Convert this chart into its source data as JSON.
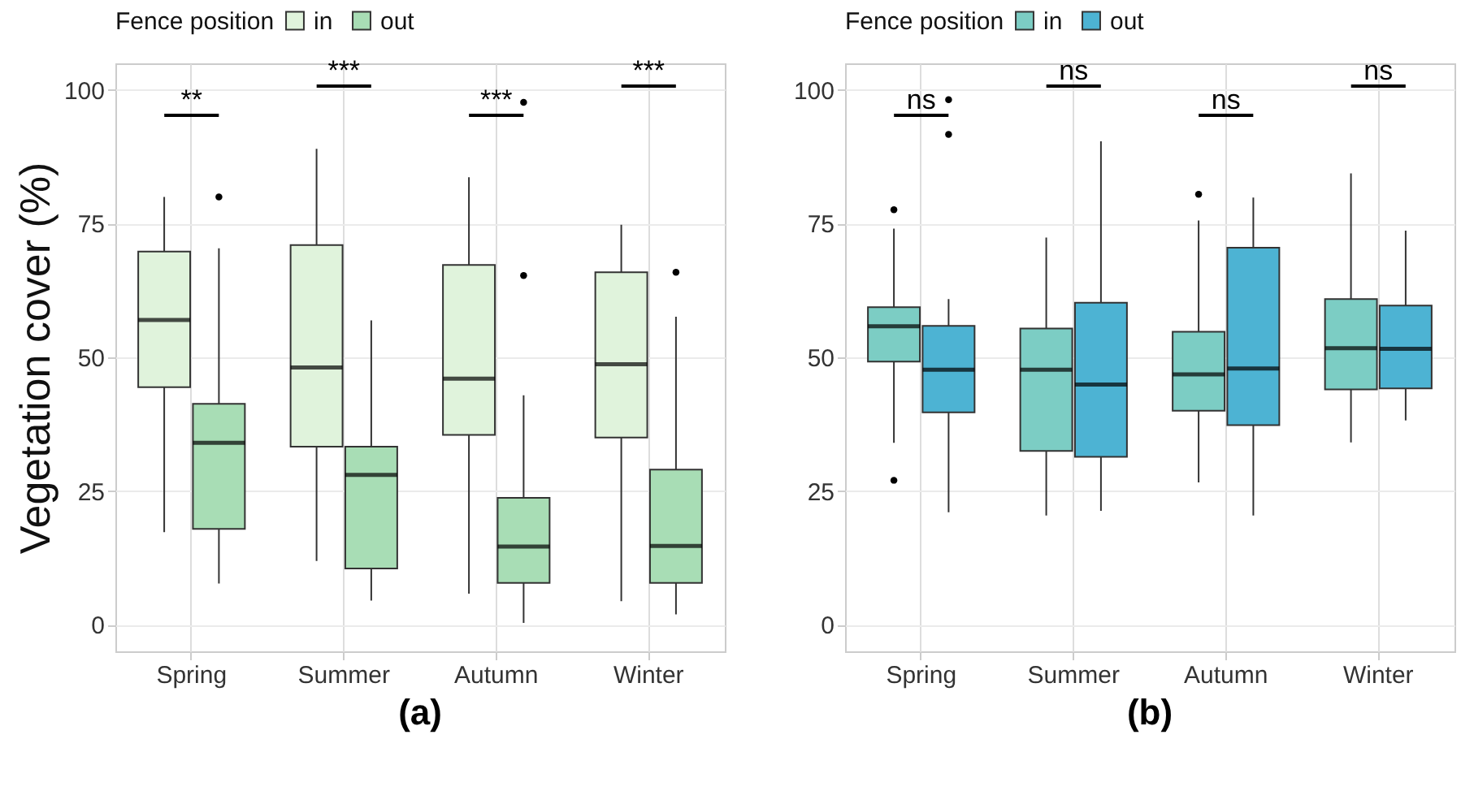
{
  "chart_data": [
    {
      "type": "box",
      "title": "(a)",
      "ylabel": "Vegetation cover (%)",
      "legend_title": "Fence position",
      "legend": "top",
      "grid": true,
      "categories": [
        "Spring",
        "Summer",
        "Autumn",
        "Winter"
      ],
      "ylim": [
        -5,
        105
      ],
      "yticks": [
        0,
        25,
        50,
        75,
        100
      ],
      "series": [
        {
          "name": "in",
          "color": "#e0f3dc",
          "boxes": [
            {
              "low": 17.3,
              "q1": 44.4,
              "median": 57,
              "q3": 69.8,
              "high": 80
            },
            {
              "low": 11.9,
              "q1": 33.3,
              "median": 48.1,
              "q3": 71,
              "high": 89
            },
            {
              "low": 5.8,
              "q1": 35.5,
              "median": 46,
              "q3": 67.3,
              "high": 83.7
            },
            {
              "low": 4.4,
              "q1": 35,
              "median": 48.7,
              "q3": 65.9,
              "high": 74.8
            }
          ]
        },
        {
          "name": "out",
          "color": "#a8ddb5",
          "boxes": [
            {
              "low": 7.7,
              "q1": 17.9,
              "median": 34,
              "q3": 41.3,
              "high": 70.4,
              "outliers": [
                80
              ]
            },
            {
              "low": 4.5,
              "q1": 10.5,
              "median": 28,
              "q3": 33.3,
              "high": 56.9
            },
            {
              "low": 0.3,
              "q1": 7.8,
              "median": 14.6,
              "q3": 23.7,
              "high": 42.9,
              "outliers": [
                97.7,
                65.3
              ]
            },
            {
              "low": 1.9,
              "q1": 7.8,
              "median": 14.7,
              "q3": 29,
              "high": 57.6,
              "outliers": [
                65.9
              ]
            }
          ]
        }
      ],
      "annotations": [
        "**",
        "***",
        "***",
        "***"
      ]
    },
    {
      "type": "box",
      "title": "(b)",
      "legend_title": "Fence position",
      "legend": "top",
      "grid": true,
      "categories": [
        "Spring",
        "Summer",
        "Autumn",
        "Winter"
      ],
      "ylim": [
        -5,
        105
      ],
      "yticks": [
        0,
        25,
        50,
        75,
        100
      ],
      "series": [
        {
          "name": "in",
          "color": "#7ccdc4",
          "boxes": [
            {
              "low": 34,
              "q1": 49.2,
              "median": 55.8,
              "q3": 59.4,
              "high": 74.1,
              "outliers": [
                77.6,
                27
              ]
            },
            {
              "low": 20.4,
              "q1": 32.5,
              "median": 47.7,
              "q3": 55.4,
              "high": 72.4
            },
            {
              "low": 26.6,
              "q1": 40,
              "median": 46.8,
              "q3": 54.8,
              "high": 75.6,
              "outliers": [
                80.5
              ]
            },
            {
              "low": 34.1,
              "q1": 44,
              "median": 51.7,
              "q3": 60.9,
              "high": 84.4
            }
          ]
        },
        {
          "name": "out",
          "color": "#4db3d3",
          "boxes": [
            {
              "low": 21,
              "q1": 39.7,
              "median": 47.7,
              "q3": 55.9,
              "high": 60.9,
              "outliers": [
                98.2,
                91.7
              ]
            },
            {
              "low": 21.3,
              "q1": 31.4,
              "median": 44.9,
              "q3": 60.2,
              "high": 90.4
            },
            {
              "low": 20.4,
              "q1": 37.3,
              "median": 47.9,
              "q3": 70.5,
              "high": 79.9
            },
            {
              "low": 38.2,
              "q1": 44.2,
              "median": 51.6,
              "q3": 59.7,
              "high": 73.7
            }
          ]
        }
      ],
      "annotations": [
        "ns",
        "ns",
        "ns",
        "ns"
      ]
    }
  ]
}
